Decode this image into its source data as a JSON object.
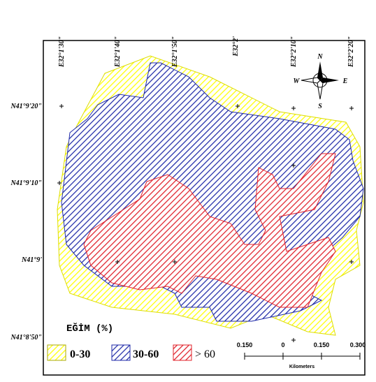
{
  "top_labels": [
    "E32°1'30\"",
    "E32°1'40\"",
    "E32°1'50\"",
    "E32°2'",
    "E32°2'10\"",
    "E32°2'20\""
  ],
  "left_labels": [
    "N41°9'20\"",
    "N41°9'10\"",
    "N41°9'",
    "N41°8'50\""
  ],
  "compass": {
    "n": "N",
    "s": "S",
    "w": "W",
    "e": "E"
  },
  "legend": {
    "title": "EĞİM (%)",
    "items": [
      "0-30",
      "30-60",
      "> 60"
    ]
  },
  "scale": {
    "ticks": [
      "0.150",
      "0",
      "0.150",
      "0.300"
    ],
    "unit": "Kilometers"
  }
}
